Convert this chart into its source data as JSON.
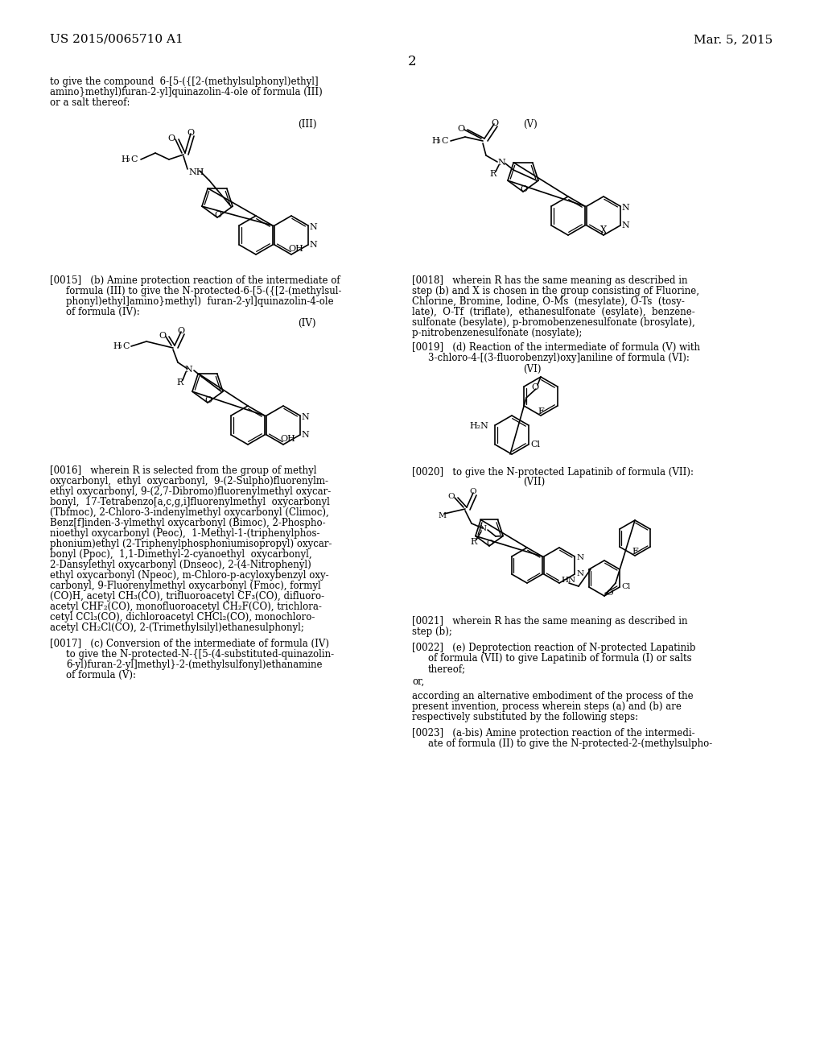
{
  "header_left": "US 2015/0065710 A1",
  "header_right": "Mar. 5, 2015",
  "page_number": "2",
  "background_color": "#ffffff",
  "font_size_header": 11,
  "font_size_body": 8.5,
  "font_size_small": 7.5,
  "font_size_tiny": 7.0
}
